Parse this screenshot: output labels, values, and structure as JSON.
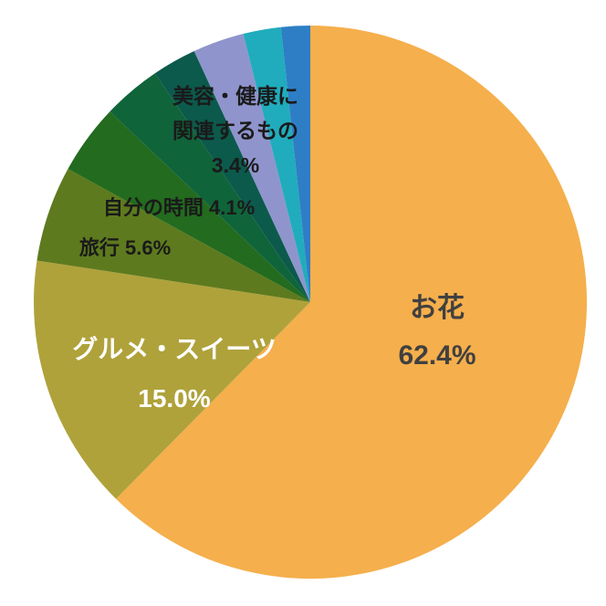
{
  "chart_data": {
    "type": "pie",
    "title": "",
    "start_angle_deg": 0,
    "direction": "clockwise",
    "background": "#FFFFFF",
    "slices": [
      {
        "label": "お花",
        "value": 62.4,
        "color": "#F5AF4C",
        "label_color": "#404040"
      },
      {
        "label": "グルメ・スイーツ",
        "value": 15.0,
        "color": "#AFA23B",
        "label_color": "#FFFFFF"
      },
      {
        "label": "旅行",
        "value": 5.6,
        "color": "#5E7A1E",
        "label_color": "#1A1A1A"
      },
      {
        "label": "自分の時間",
        "value": 4.1,
        "color": "#236B1F",
        "label_color": "#1A1A1A"
      },
      {
        "label": "美容・健康に関連するもの",
        "value": 3.4,
        "color": "#10643A",
        "label_color": "#1A1A1A"
      },
      {
        "label": "",
        "value": 2.6,
        "color": "#0C5A4C"
      },
      {
        "label": "",
        "value": 3.0,
        "color": "#8F94CC"
      },
      {
        "label": "",
        "value": 2.2,
        "color": "#20ACBC"
      },
      {
        "label": "",
        "value": 1.7,
        "color": "#2E7EC6"
      }
    ]
  },
  "labels": {
    "hana": {
      "name": "お花",
      "pct": "62.4%"
    },
    "gourmet": {
      "name": "グルメ・スイーツ",
      "pct": "15.0%"
    },
    "travel": {
      "text": "旅行 5.6%"
    },
    "metime": {
      "text": "自分の時間 4.1%"
    },
    "beauty": {
      "line1": "美容・健康に",
      "line2": "関連するもの",
      "pct": "3.4%"
    }
  }
}
